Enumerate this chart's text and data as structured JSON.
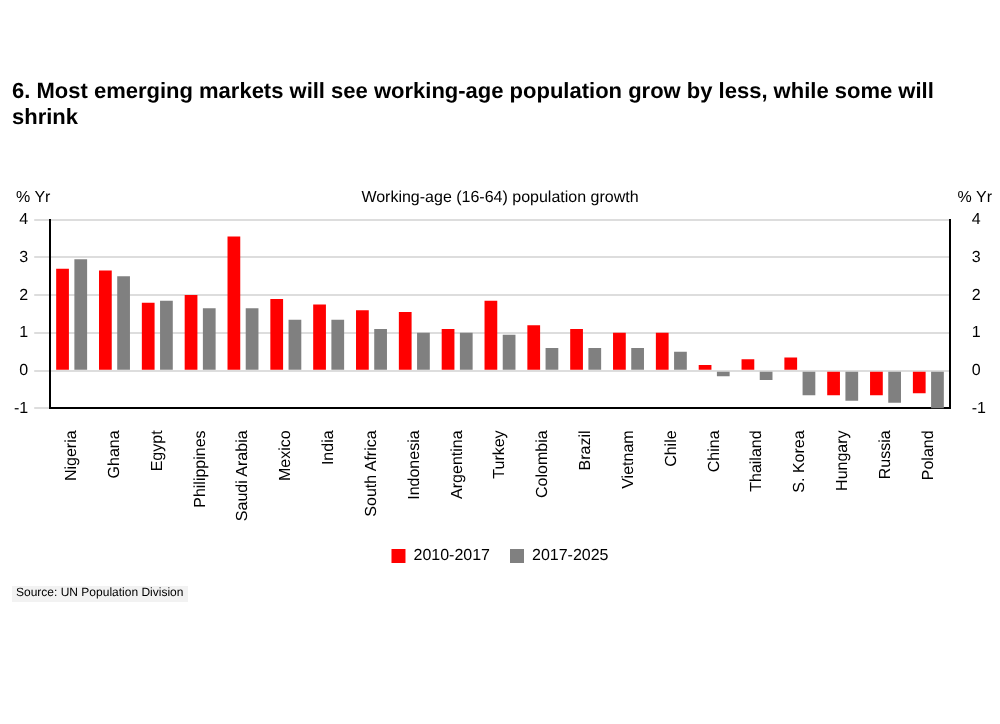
{
  "chart_data": {
    "type": "bar",
    "title": "6. Most emerging markets will see working-age population grow by less, while some will shrink",
    "subtitle": "Working-age (16-64) population growth",
    "ylabel": "% Yr",
    "y2label": "% Yr",
    "categories": [
      "Nigeria",
      "Ghana",
      "Egypt",
      "Philippines",
      "Saudi Arabia",
      "Mexico",
      "India",
      "South Africa",
      "Indonesia",
      "Argentina",
      "Turkey",
      "Colombia",
      "Brazil",
      "Vietnam",
      "Chile",
      "China",
      "Thailand",
      "S. Korea",
      "Hungary",
      "Russia",
      "Poland"
    ],
    "series": [
      {
        "name": "2010-2017",
        "color": "#ff0000",
        "values": [
          2.7,
          2.65,
          1.8,
          2.0,
          3.55,
          1.9,
          1.75,
          1.6,
          1.55,
          1.1,
          1.85,
          1.2,
          1.1,
          1.0,
          1.0,
          0.15,
          0.3,
          0.35,
          -0.65,
          -0.65,
          -0.6
        ]
      },
      {
        "name": "2017-2025",
        "color": "#808080",
        "values": [
          2.95,
          2.5,
          1.85,
          1.65,
          1.65,
          1.35,
          1.35,
          1.1,
          1.0,
          1.0,
          0.95,
          0.6,
          0.6,
          0.6,
          0.5,
          -0.15,
          -0.25,
          -0.65,
          -0.8,
          -0.85,
          -1.0
        ]
      }
    ],
    "ylim": [
      -1,
      4
    ],
    "yticks": [
      -1,
      0,
      1,
      2,
      3,
      4
    ],
    "y2lim": [
      -1,
      4
    ],
    "y2ticks": [
      -1,
      0,
      1,
      2,
      3,
      4
    ],
    "grid": "y",
    "legend": "bottom",
    "annotations": [
      "Source: UN Population Division"
    ]
  }
}
